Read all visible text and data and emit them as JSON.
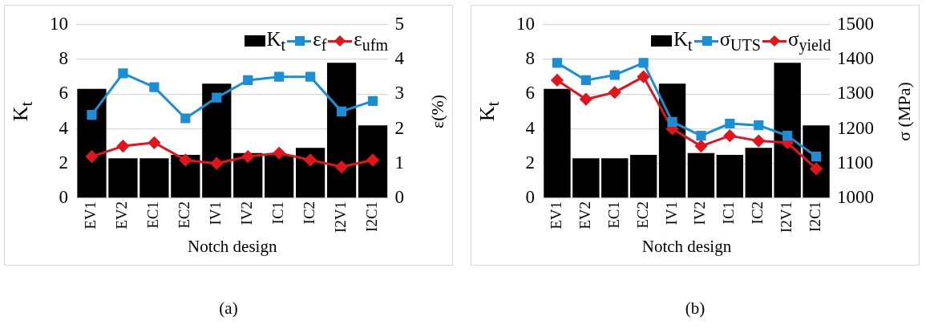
{
  "chart_data": [
    {
      "type": "bar",
      "xlabel": "Notch design",
      "ylabel": "K$_{t}$",
      "y2label": "ε(%)",
      "annotations": [
        "(a)"
      ],
      "categories": [
        "EV1",
        "EV2",
        "EC1",
        "EC2",
        "IV1",
        "IV2",
        "IC1",
        "IC2",
        "I2V1",
        "I2C1"
      ],
      "series": [
        {
          "name": "K$_{t}$",
          "color": "#000000",
          "values": [
            6.3,
            2.3,
            2.3,
            2.5,
            6.6,
            2.6,
            2.5,
            2.9,
            7.8,
            4.2
          ]
        },
        {
          "name": "ε$_{f}$",
          "type": "line",
          "axis": "y2",
          "color": "#1a8fd6",
          "marker": "square",
          "values": [
            2.4,
            3.6,
            3.2,
            2.3,
            2.9,
            3.4,
            3.5,
            3.5,
            2.5,
            2.8
          ]
        },
        {
          "name": "ε$_{ufm}$",
          "type": "line",
          "axis": "y2",
          "color": "#e3141b",
          "marker": "diamond",
          "values": [
            1.2,
            1.5,
            1.6,
            1.1,
            1.0,
            1.2,
            1.3,
            1.1,
            0.9,
            1.1
          ]
        }
      ],
      "ylim": [
        0,
        10
      ],
      "yticks": [
        0,
        2,
        4,
        6,
        8,
        10
      ],
      "y2lim": [
        0,
        5
      ],
      "y2ticks": [
        0,
        1,
        2,
        3,
        4,
        5
      ],
      "grid": "y",
      "legend": "top right"
    },
    {
      "type": "bar",
      "xlabel": "Notch design",
      "ylabel": "K$_{t}$",
      "y2label": "σ (MPa)",
      "annotations": [
        "(b)"
      ],
      "categories": [
        "EV1",
        "EV2",
        "EC1",
        "EC2",
        "IV1",
        "IV2",
        "IC1",
        "IC2",
        "I2V1",
        "I2C1"
      ],
      "series": [
        {
          "name": "K$_{t}$",
          "color": "#000000",
          "values": [
            6.3,
            2.3,
            2.3,
            2.5,
            6.6,
            2.6,
            2.5,
            2.9,
            7.8,
            4.2
          ]
        },
        {
          "name": "σ$_{UTS}$",
          "type": "line",
          "axis": "y2",
          "color": "#1a8fd6",
          "marker": "square",
          "values": [
            1390,
            1340,
            1355,
            1390,
            1220,
            1180,
            1215,
            1210,
            1180,
            1120
          ]
        },
        {
          "name": "σ$_{yield}$",
          "type": "line",
          "axis": "y2",
          "color": "#e3141b",
          "marker": "diamond",
          "values": [
            1340,
            1285,
            1305,
            1350,
            1200,
            1150,
            1180,
            1165,
            1160,
            1085
          ]
        }
      ],
      "ylim": [
        0,
        10
      ],
      "yticks": [
        0,
        2,
        4,
        6,
        8,
        10
      ],
      "y2lim": [
        1000,
        1500
      ],
      "y2ticks": [
        1000,
        1100,
        1200,
        1300,
        1400,
        1500
      ],
      "grid": "y",
      "legend": "top right"
    }
  ]
}
